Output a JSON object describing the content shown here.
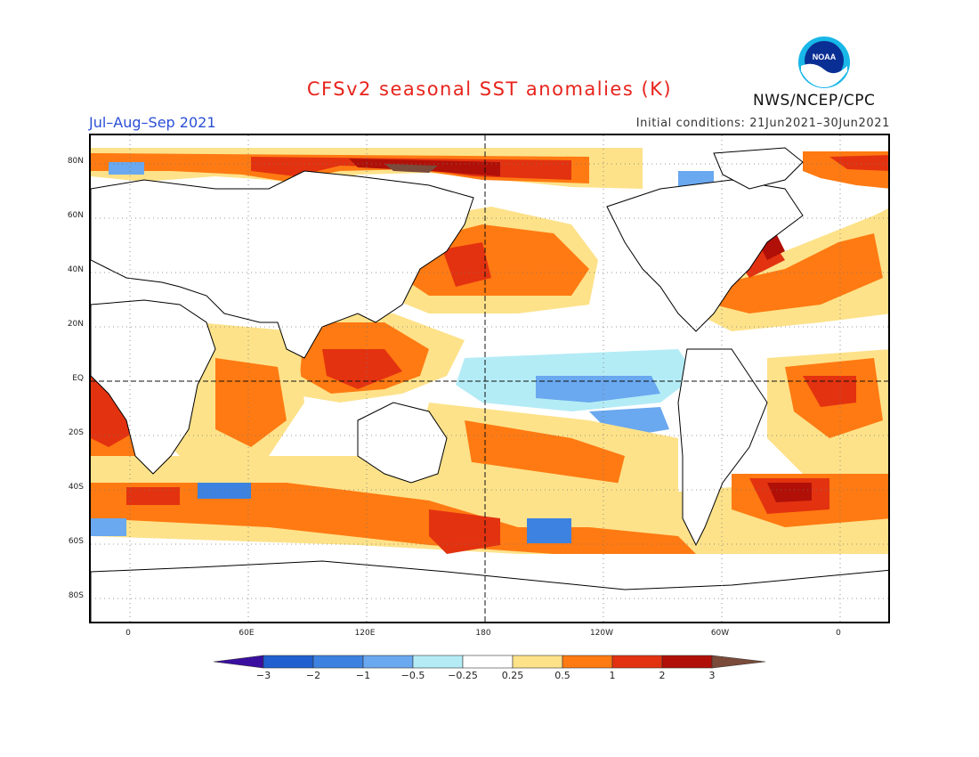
{
  "header": {
    "title": "CFSv2 seasonal SST anomalies (K)",
    "season": "Jul–Aug–Sep 2021",
    "initial_conditions": "Initial conditions: 21Jun2021–30Jun2021",
    "agency": "NWS/NCEP/CPC",
    "logo_text": "NOAA"
  },
  "map": {
    "lat_labels": [
      "80N",
      "60N",
      "40N",
      "20N",
      "EQ",
      "20S",
      "40S",
      "60S",
      "80S"
    ],
    "lon_labels": [
      "0",
      "60E",
      "120E",
      "180",
      "120W",
      "60W",
      "0"
    ],
    "reference_lines": [
      "EQ",
      "180"
    ]
  },
  "colorbar": {
    "labels": [
      "−3",
      "−2",
      "−1",
      "−0.5",
      "−0.25",
      "0.25",
      "0.5",
      "1",
      "2",
      "3"
    ],
    "colors": [
      "#3a0fa0",
      "#1f5fcf",
      "#3d82e0",
      "#6aa8ef",
      "#b4ecf6",
      "#ffffff",
      "#fde28a",
      "#ff7a12",
      "#e33210",
      "#b01008",
      "#7a4a3a"
    ]
  }
}
